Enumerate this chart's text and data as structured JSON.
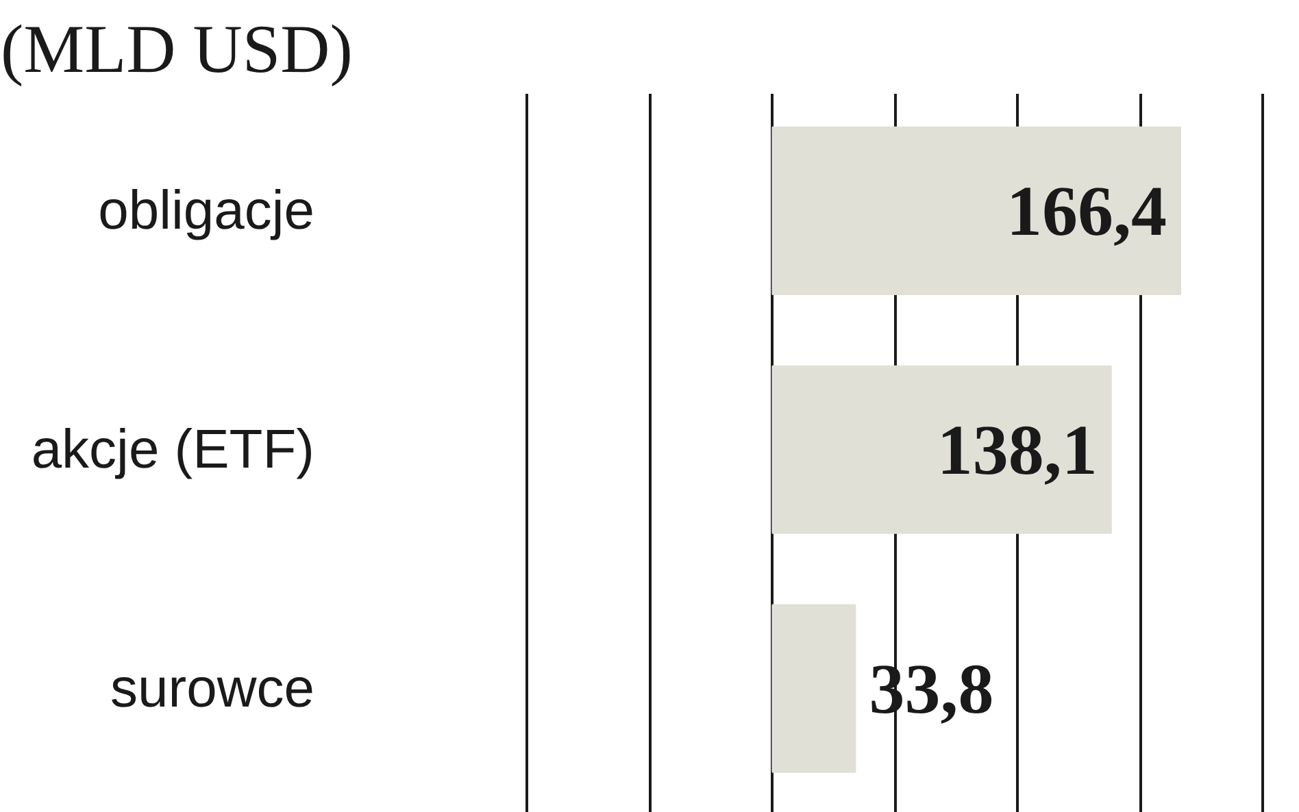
{
  "chart_data": {
    "type": "bar",
    "orientation": "horizontal",
    "title": "(MLD USD)",
    "categories": [
      "obligacje",
      "akcje (ETF)",
      "surowce"
    ],
    "values": [
      166.4,
      138.1,
      33.8
    ],
    "value_labels": [
      "166,4",
      "138,1",
      "33,8"
    ],
    "color": "#e1e0d7",
    "xticks": [
      {
        "value": -100,
        "label": null
      },
      {
        "value": -50,
        "label": null
      },
      {
        "value": 0,
        "label": null
      },
      {
        "value": 50,
        "label": null
      },
      {
        "value": 100,
        "label": null
      },
      {
        "value": 150,
        "label": null
      },
      {
        "value": 200,
        "label": null
      }
    ],
    "grid": "x",
    "tick_labels": "y"
  }
}
